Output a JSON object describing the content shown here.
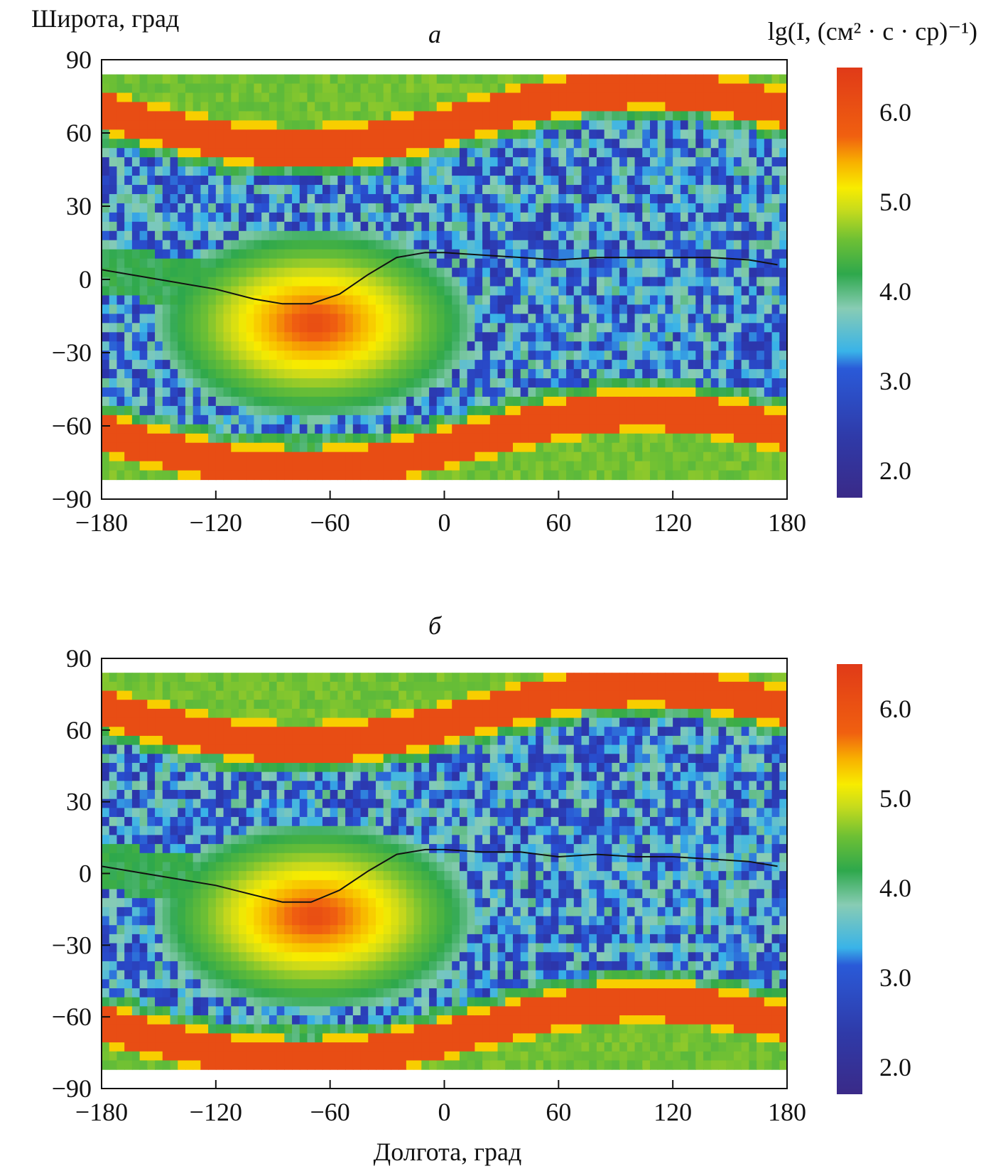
{
  "figure": {
    "y_axis_label": "Широта, град",
    "x_axis_label": "Долгота, град",
    "colorbar_label": "lg(I, (см² · с · ср)⁻¹)"
  },
  "chart_data": [
    {
      "type": "heatmap",
      "panel": "a",
      "panel_label": "а",
      "xlim": [
        -180,
        180
      ],
      "ylim": [
        -90,
        90
      ],
      "xticks": [
        "−180",
        "−120",
        "−60",
        "0",
        "60",
        "120",
        "180"
      ],
      "yticks": [
        "90",
        "60",
        "30",
        "0",
        "−30",
        "−60",
        "−90"
      ],
      "data_extent": {
        "lat": [
          -82,
          84
        ],
        "lon": [
          -180,
          180
        ]
      },
      "colorbar": {
        "ticks": [
          "6.0",
          "5.0",
          "4.0",
          "3.0",
          "2.0"
        ],
        "range": [
          1.7,
          6.5
        ]
      },
      "magnetic_equator": [
        [
          -180,
          4
        ],
        [
          -150,
          0
        ],
        [
          -120,
          -4
        ],
        [
          -100,
          -8
        ],
        [
          -85,
          -10
        ],
        [
          -70,
          -10
        ],
        [
          -55,
          -6
        ],
        [
          -40,
          2
        ],
        [
          -25,
          9
        ],
        [
          -10,
          11
        ],
        [
          0,
          11
        ],
        [
          20,
          10
        ],
        [
          40,
          9
        ],
        [
          60,
          8
        ],
        [
          80,
          9
        ],
        [
          100,
          9
        ],
        [
          120,
          9
        ],
        [
          140,
          9
        ],
        [
          160,
          8
        ],
        [
          175,
          6
        ]
      ]
    },
    {
      "type": "heatmap",
      "panel": "b",
      "panel_label": "б",
      "xlim": [
        -180,
        180
      ],
      "ylim": [
        -90,
        90
      ],
      "xticks": [
        "−180",
        "−120",
        "−60",
        "0",
        "60",
        "120",
        "180"
      ],
      "yticks": [
        "90",
        "60",
        "30",
        "0",
        "−30",
        "−60",
        "−90"
      ],
      "data_extent": {
        "lat": [
          -82,
          84
        ],
        "lon": [
          -180,
          180
        ]
      },
      "colorbar": {
        "ticks": [
          "6.0",
          "5.0",
          "4.0",
          "3.0",
          "2.0"
        ],
        "range": [
          1.7,
          6.5
        ]
      },
      "magnetic_equator": [
        [
          -180,
          3
        ],
        [
          -150,
          -1
        ],
        [
          -120,
          -5
        ],
        [
          -100,
          -9
        ],
        [
          -85,
          -12
        ],
        [
          -70,
          -12
        ],
        [
          -55,
          -7
        ],
        [
          -40,
          1
        ],
        [
          -25,
          8
        ],
        [
          -10,
          10
        ],
        [
          0,
          10
        ],
        [
          20,
          9
        ],
        [
          40,
          9
        ],
        [
          60,
          7
        ],
        [
          80,
          8
        ],
        [
          100,
          7
        ],
        [
          120,
          7
        ],
        [
          140,
          6
        ],
        [
          160,
          5
        ],
        [
          175,
          3
        ]
      ]
    }
  ]
}
